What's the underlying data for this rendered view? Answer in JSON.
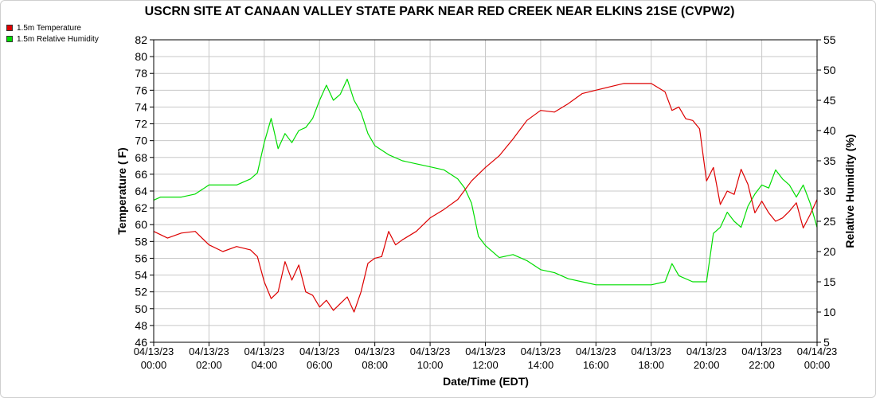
{
  "chart_data": {
    "type": "line",
    "title": "USCRN SITE AT CANAAN VALLEY STATE PARK NEAR RED CREEK NEAR ELKINS 21SE (CVPW2)",
    "xlabel": "Date/Time (EDT)",
    "ylabel_left": "Temperature ( F)",
    "ylabel_right": "Relative Humidity (%)",
    "xlim": [
      0,
      24
    ],
    "ylim_left": [
      46,
      82
    ],
    "ylim_right": [
      5,
      55
    ],
    "grid": true,
    "legend_position": "top-left",
    "x_ticks": [
      {
        "value": 0,
        "date": "04/13/23",
        "time": "00:00"
      },
      {
        "value": 2,
        "date": "04/13/23",
        "time": "02:00"
      },
      {
        "value": 4,
        "date": "04/13/23",
        "time": "04:00"
      },
      {
        "value": 6,
        "date": "04/13/23",
        "time": "06:00"
      },
      {
        "value": 8,
        "date": "04/13/23",
        "time": "08:00"
      },
      {
        "value": 10,
        "date": "04/13/23",
        "time": "10:00"
      },
      {
        "value": 12,
        "date": "04/13/23",
        "time": "12:00"
      },
      {
        "value": 14,
        "date": "04/13/23",
        "time": "14:00"
      },
      {
        "value": 16,
        "date": "04/13/23",
        "time": "16:00"
      },
      {
        "value": 18,
        "date": "04/13/23",
        "time": "18:00"
      },
      {
        "value": 20,
        "date": "04/13/23",
        "time": "20:00"
      },
      {
        "value": 22,
        "date": "04/13/23",
        "time": "22:00"
      },
      {
        "value": 24,
        "date": "04/14/23",
        "time": "00:00"
      }
    ],
    "y_ticks_left": [
      46,
      48,
      50,
      52,
      54,
      56,
      58,
      60,
      62,
      64,
      66,
      68,
      70,
      72,
      74,
      76,
      78,
      80,
      82
    ],
    "y_ticks_right": [
      5,
      10,
      15,
      20,
      25,
      30,
      35,
      40,
      45,
      50,
      55
    ],
    "series": [
      {
        "name": "1.5m Temperature",
        "color": "#dd0000",
        "axis": "left",
        "x": [
          0,
          0.5,
          1,
          1.5,
          2,
          2.5,
          3,
          3.5,
          3.75,
          4,
          4.25,
          4.5,
          4.75,
          5,
          5.25,
          5.5,
          5.75,
          6,
          6.25,
          6.5,
          6.75,
          7,
          7.25,
          7.5,
          7.75,
          8,
          8.25,
          8.5,
          8.75,
          9,
          9.5,
          10,
          10.5,
          11,
          11.5,
          12,
          12.5,
          13,
          13.5,
          14,
          14.5,
          15,
          15.5,
          16,
          16.5,
          17,
          17.5,
          18,
          18.5,
          18.75,
          19,
          19.25,
          19.5,
          19.75,
          20,
          20.25,
          20.5,
          20.75,
          21,
          21.25,
          21.5,
          21.75,
          22,
          22.25,
          22.5,
          22.75,
          23,
          23.25,
          23.5,
          23.75,
          24
        ],
        "y": [
          59.2,
          58.4,
          59.0,
          59.2,
          57.6,
          56.8,
          57.4,
          57.0,
          56.2,
          53.2,
          51.2,
          52.0,
          55.6,
          53.4,
          55.2,
          52.0,
          51.6,
          50.2,
          51.0,
          49.8,
          50.6,
          51.4,
          49.6,
          52.0,
          55.4,
          56.0,
          56.2,
          59.2,
          57.6,
          58.2,
          59.2,
          60.8,
          61.8,
          63.0,
          65.2,
          66.8,
          68.2,
          70.2,
          72.4,
          73.6,
          73.4,
          74.4,
          75.6,
          76.0,
          76.4,
          76.8,
          76.8,
          76.8,
          75.8,
          73.6,
          74.0,
          72.6,
          72.4,
          71.4,
          65.2,
          66.8,
          62.4,
          64.0,
          63.6,
          66.6,
          64.8,
          61.4,
          62.8,
          61.4,
          60.4,
          60.8,
          61.6,
          62.6,
          59.6,
          61.2,
          63.0
        ]
      },
      {
        "name": "1.5m Relative Humidity",
        "color": "#00dd00",
        "axis": "right",
        "x": [
          0,
          0.25,
          0.5,
          1,
          1.5,
          2,
          2.5,
          3,
          3.5,
          3.75,
          4,
          4.25,
          4.5,
          4.75,
          5,
          5.25,
          5.5,
          5.75,
          6,
          6.25,
          6.5,
          6.75,
          7,
          7.25,
          7.5,
          7.75,
          8,
          8.5,
          9,
          9.5,
          10,
          10.5,
          11,
          11.25,
          11.5,
          11.75,
          12,
          12.5,
          13,
          13.5,
          14,
          14.5,
          15,
          15.5,
          16,
          16.5,
          17,
          17.5,
          18,
          18.5,
          18.75,
          19,
          19.5,
          19.75,
          20,
          20.25,
          20.5,
          20.75,
          21,
          21.25,
          21.5,
          21.75,
          22,
          22.25,
          22.5,
          22.75,
          23,
          23.25,
          23.5,
          23.75,
          24
        ],
        "y": [
          28.5,
          29.0,
          29.0,
          29.0,
          29.5,
          31.0,
          31.0,
          31.0,
          32.0,
          33.0,
          38.0,
          42.0,
          37.0,
          39.5,
          38.0,
          40.0,
          40.5,
          42.0,
          45.0,
          47.5,
          45.0,
          46.0,
          48.5,
          45.0,
          43.0,
          39.5,
          37.5,
          36.0,
          35.0,
          34.5,
          34.0,
          33.5,
          32.0,
          30.5,
          28.0,
          22.5,
          21.0,
          19.0,
          19.5,
          18.5,
          17.0,
          16.5,
          15.5,
          15.0,
          14.5,
          14.5,
          14.5,
          14.5,
          14.5,
          15.0,
          18.0,
          16.0,
          15.0,
          15.0,
          15.0,
          23.0,
          24.0,
          26.5,
          25.0,
          24.0,
          27.5,
          29.5,
          31.0,
          30.5,
          33.5,
          32.0,
          31.0,
          29.0,
          31.0,
          28.0,
          24.0
        ]
      }
    ]
  }
}
